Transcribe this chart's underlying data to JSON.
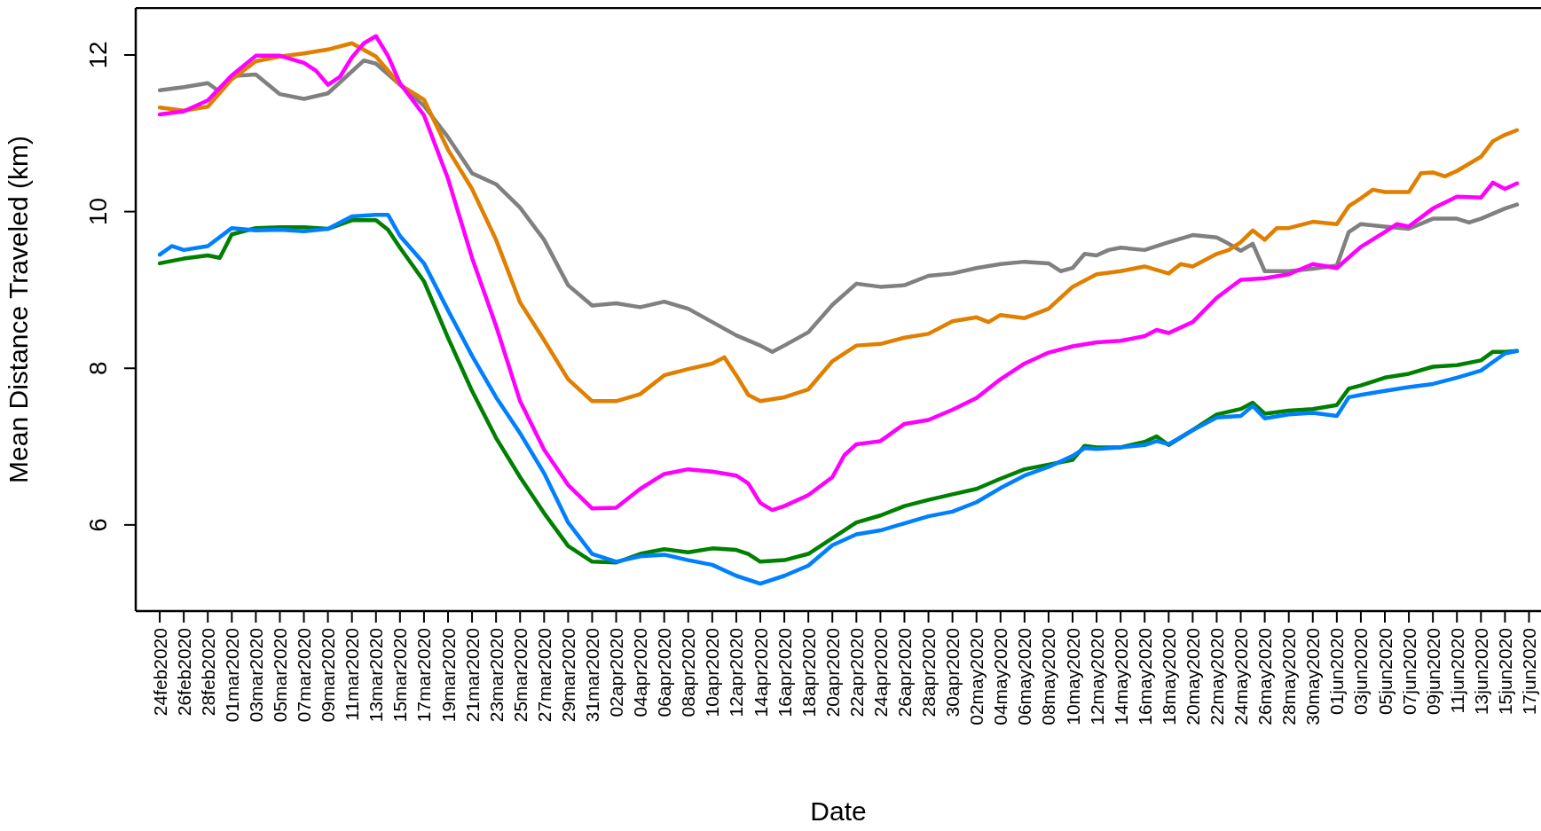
{
  "chart_data": {
    "type": "line",
    "xlabel": "Date",
    "ylabel": "Mean Distance Traveled (km)",
    "xlim": [
      "2020-02-22",
      "2020-06-18"
    ],
    "ylim": [
      4.9,
      12.6
    ],
    "yticks": [
      6,
      8,
      10,
      12
    ],
    "xticks": [
      {
        "value": "2020-02-24",
        "label": "24feb2020"
      },
      {
        "value": "2020-02-26",
        "label": "26feb2020"
      },
      {
        "value": "2020-02-28",
        "label": "28feb2020"
      },
      {
        "value": "2020-03-01",
        "label": "01mar2020"
      },
      {
        "value": "2020-03-03",
        "label": "03mar2020"
      },
      {
        "value": "2020-03-05",
        "label": "05mar2020"
      },
      {
        "value": "2020-03-07",
        "label": "07mar2020"
      },
      {
        "value": "2020-03-09",
        "label": "09mar2020"
      },
      {
        "value": "2020-03-11",
        "label": "11mar2020"
      },
      {
        "value": "2020-03-13",
        "label": "13mar2020"
      },
      {
        "value": "2020-03-15",
        "label": "15mar2020"
      },
      {
        "value": "2020-03-17",
        "label": "17mar2020"
      },
      {
        "value": "2020-03-19",
        "label": "19mar2020"
      },
      {
        "value": "2020-03-21",
        "label": "21mar2020"
      },
      {
        "value": "2020-03-23",
        "label": "23mar2020"
      },
      {
        "value": "2020-03-25",
        "label": "25mar2020"
      },
      {
        "value": "2020-03-27",
        "label": "27mar2020"
      },
      {
        "value": "2020-03-29",
        "label": "29mar2020"
      },
      {
        "value": "2020-03-31",
        "label": "31mar2020"
      },
      {
        "value": "2020-04-02",
        "label": "02apr2020"
      },
      {
        "value": "2020-04-04",
        "label": "04apr2020"
      },
      {
        "value": "2020-04-06",
        "label": "06apr2020"
      },
      {
        "value": "2020-04-08",
        "label": "08apr2020"
      },
      {
        "value": "2020-04-10",
        "label": "10apr2020"
      },
      {
        "value": "2020-04-12",
        "label": "12apr2020"
      },
      {
        "value": "2020-04-14",
        "label": "14apr2020"
      },
      {
        "value": "2020-04-16",
        "label": "16apr2020"
      },
      {
        "value": "2020-04-18",
        "label": "18apr2020"
      },
      {
        "value": "2020-04-20",
        "label": "20apr2020"
      },
      {
        "value": "2020-04-22",
        "label": "22apr2020"
      },
      {
        "value": "2020-04-24",
        "label": "24apr2020"
      },
      {
        "value": "2020-04-26",
        "label": "26apr2020"
      },
      {
        "value": "2020-04-28",
        "label": "28apr2020"
      },
      {
        "value": "2020-04-30",
        "label": "30apr2020"
      },
      {
        "value": "2020-05-02",
        "label": "02may2020"
      },
      {
        "value": "2020-05-04",
        "label": "04may2020"
      },
      {
        "value": "2020-05-06",
        "label": "06may2020"
      },
      {
        "value": "2020-05-08",
        "label": "08may2020"
      },
      {
        "value": "2020-05-10",
        "label": "10may2020"
      },
      {
        "value": "2020-05-12",
        "label": "12may2020"
      },
      {
        "value": "2020-05-14",
        "label": "14may2020"
      },
      {
        "value": "2020-05-16",
        "label": "16may2020"
      },
      {
        "value": "2020-05-18",
        "label": "18may2020"
      },
      {
        "value": "2020-05-20",
        "label": "20may2020"
      },
      {
        "value": "2020-05-22",
        "label": "22may2020"
      },
      {
        "value": "2020-05-24",
        "label": "24may2020"
      },
      {
        "value": "2020-05-26",
        "label": "26may2020"
      },
      {
        "value": "2020-05-28",
        "label": "28may2020"
      },
      {
        "value": "2020-05-30",
        "label": "30may2020"
      },
      {
        "value": "2020-06-01",
        "label": "01jun2020"
      },
      {
        "value": "2020-06-03",
        "label": "03jun2020"
      },
      {
        "value": "2020-06-05",
        "label": "05jun2020"
      },
      {
        "value": "2020-06-07",
        "label": "07jun2020"
      },
      {
        "value": "2020-06-09",
        "label": "09jun2020"
      },
      {
        "value": "2020-06-11",
        "label": "11jun2020"
      },
      {
        "value": "2020-06-13",
        "label": "13jun2020"
      },
      {
        "value": "2020-06-15",
        "label": "15jun2020"
      },
      {
        "value": "2020-06-17",
        "label": "17jun2020"
      }
    ],
    "series": [
      {
        "color": "#808080",
        "x": [
          "2020-02-24",
          "2020-02-26",
          "2020-02-28",
          "2020-02-29",
          "2020-03-01",
          "2020-03-03",
          "2020-03-05",
          "2020-03-07",
          "2020-03-09",
          "2020-03-11",
          "2020-03-12",
          "2020-03-13",
          "2020-03-15",
          "2020-03-17",
          "2020-03-19",
          "2020-03-21",
          "2020-03-23",
          "2020-03-25",
          "2020-03-27",
          "2020-03-29",
          "2020-03-31",
          "2020-04-02",
          "2020-04-04",
          "2020-04-06",
          "2020-04-08",
          "2020-04-10",
          "2020-04-12",
          "2020-04-14",
          "2020-04-15",
          "2020-04-16",
          "2020-04-18",
          "2020-04-20",
          "2020-04-22",
          "2020-04-24",
          "2020-04-26",
          "2020-04-28",
          "2020-04-30",
          "2020-05-02",
          "2020-05-04",
          "2020-05-06",
          "2020-05-08",
          "2020-05-09",
          "2020-05-10",
          "2020-05-11",
          "2020-05-12",
          "2020-05-13",
          "2020-05-14",
          "2020-05-16",
          "2020-05-18",
          "2020-05-20",
          "2020-05-22",
          "2020-05-23",
          "2020-05-24",
          "2020-05-25",
          "2020-05-26",
          "2020-05-28",
          "2020-05-30",
          "2020-06-01",
          "2020-06-02",
          "2020-06-03",
          "2020-06-05",
          "2020-06-07",
          "2020-06-09",
          "2020-06-11",
          "2020-06-12",
          "2020-06-13",
          "2020-06-15",
          "2020-06-16"
        ],
        "values": [
          11.55,
          11.59,
          11.64,
          11.53,
          11.73,
          11.75,
          11.5,
          11.44,
          11.51,
          11.79,
          11.93,
          11.89,
          11.62,
          11.35,
          10.95,
          10.49,
          10.35,
          10.05,
          9.64,
          9.06,
          8.8,
          8.83,
          8.78,
          8.85,
          8.76,
          8.59,
          8.42,
          8.29,
          8.21,
          8.29,
          8.46,
          8.81,
          9.08,
          9.04,
          9.06,
          9.18,
          9.21,
          9.28,
          9.33,
          9.36,
          9.34,
          9.24,
          9.28,
          9.46,
          9.44,
          9.51,
          9.54,
          9.51,
          9.61,
          9.7,
          9.67,
          9.59,
          9.5,
          9.59,
          9.24,
          9.24,
          9.27,
          9.31,
          9.74,
          9.84,
          9.81,
          9.78,
          9.91,
          9.91,
          9.86,
          9.91,
          10.04,
          10.09
        ]
      },
      {
        "color": "#e07f00",
        "x": [
          "2020-02-24",
          "2020-02-26",
          "2020-02-28",
          "2020-03-01",
          "2020-03-03",
          "2020-03-05",
          "2020-03-07",
          "2020-03-09",
          "2020-03-11",
          "2020-03-13",
          "2020-03-15",
          "2020-03-17",
          "2020-03-19",
          "2020-03-21",
          "2020-03-23",
          "2020-03-25",
          "2020-03-27",
          "2020-03-29",
          "2020-03-31",
          "2020-04-02",
          "2020-04-04",
          "2020-04-06",
          "2020-04-08",
          "2020-04-10",
          "2020-04-11",
          "2020-04-12",
          "2020-04-13",
          "2020-04-14",
          "2020-04-16",
          "2020-04-18",
          "2020-04-20",
          "2020-04-22",
          "2020-04-24",
          "2020-04-26",
          "2020-04-28",
          "2020-04-30",
          "2020-05-02",
          "2020-05-03",
          "2020-05-04",
          "2020-05-06",
          "2020-05-08",
          "2020-05-10",
          "2020-05-12",
          "2020-05-14",
          "2020-05-16",
          "2020-05-18",
          "2020-05-19",
          "2020-05-20",
          "2020-05-22",
          "2020-05-23",
          "2020-05-24",
          "2020-05-25",
          "2020-05-26",
          "2020-05-27",
          "2020-05-28",
          "2020-05-30",
          "2020-06-01",
          "2020-06-02",
          "2020-06-03",
          "2020-06-04",
          "2020-06-05",
          "2020-06-07",
          "2020-06-08",
          "2020-06-09",
          "2020-06-10",
          "2020-06-11",
          "2020-06-13",
          "2020-06-14",
          "2020-06-15",
          "2020-06-16"
        ],
        "values": [
          11.33,
          11.29,
          11.34,
          11.69,
          11.92,
          11.98,
          12.02,
          12.07,
          12.15,
          11.98,
          11.62,
          11.43,
          10.79,
          10.29,
          9.64,
          8.84,
          8.36,
          7.86,
          7.58,
          7.58,
          7.67,
          7.91,
          7.99,
          8.06,
          8.14,
          7.91,
          7.66,
          7.58,
          7.63,
          7.73,
          8.09,
          8.29,
          8.31,
          8.39,
          8.44,
          8.6,
          8.65,
          8.59,
          8.68,
          8.64,
          8.76,
          9.04,
          9.2,
          9.24,
          9.3,
          9.21,
          9.33,
          9.3,
          9.46,
          9.51,
          9.61,
          9.76,
          9.64,
          9.79,
          9.79,
          9.87,
          9.84,
          10.07,
          10.17,
          10.28,
          10.25,
          10.25,
          10.49,
          10.5,
          10.45,
          10.52,
          10.7,
          10.9,
          10.98,
          11.04
        ]
      },
      {
        "color": "#ff00ff",
        "x": [
          "2020-02-24",
          "2020-02-26",
          "2020-02-28",
          "2020-03-01",
          "2020-03-03",
          "2020-03-05",
          "2020-03-07",
          "2020-03-08",
          "2020-03-09",
          "2020-03-10",
          "2020-03-11",
          "2020-03-12",
          "2020-03-13",
          "2020-03-14",
          "2020-03-15",
          "2020-03-17",
          "2020-03-19",
          "2020-03-21",
          "2020-03-23",
          "2020-03-25",
          "2020-03-27",
          "2020-03-29",
          "2020-03-31",
          "2020-04-02",
          "2020-04-04",
          "2020-04-06",
          "2020-04-08",
          "2020-04-10",
          "2020-04-12",
          "2020-04-13",
          "2020-04-14",
          "2020-04-15",
          "2020-04-16",
          "2020-04-18",
          "2020-04-20",
          "2020-04-21",
          "2020-04-22",
          "2020-04-24",
          "2020-04-26",
          "2020-04-28",
          "2020-04-30",
          "2020-05-02",
          "2020-05-04",
          "2020-05-06",
          "2020-05-08",
          "2020-05-10",
          "2020-05-12",
          "2020-05-14",
          "2020-05-16",
          "2020-05-17",
          "2020-05-18",
          "2020-05-20",
          "2020-05-22",
          "2020-05-24",
          "2020-05-26",
          "2020-05-28",
          "2020-05-30",
          "2020-06-01",
          "2020-06-03",
          "2020-06-05",
          "2020-06-06",
          "2020-06-07",
          "2020-06-09",
          "2020-06-11",
          "2020-06-13",
          "2020-06-14",
          "2020-06-15",
          "2020-06-16"
        ],
        "values": [
          11.24,
          11.28,
          11.42,
          11.74,
          11.99,
          11.99,
          11.9,
          11.8,
          11.62,
          11.72,
          11.97,
          12.15,
          12.24,
          11.99,
          11.64,
          11.23,
          10.42,
          9.41,
          8.54,
          7.58,
          6.96,
          6.51,
          6.21,
          6.22,
          6.46,
          6.65,
          6.71,
          6.68,
          6.63,
          6.53,
          6.28,
          6.19,
          6.24,
          6.38,
          6.61,
          6.89,
          7.03,
          7.07,
          7.29,
          7.34,
          7.47,
          7.62,
          7.86,
          8.06,
          8.2,
          8.28,
          8.33,
          8.35,
          8.41,
          8.49,
          8.45,
          8.59,
          8.9,
          9.13,
          9.15,
          9.2,
          9.33,
          9.28,
          9.55,
          9.74,
          9.84,
          9.81,
          10.04,
          10.19,
          10.18,
          10.37,
          10.29,
          10.36
        ]
      },
      {
        "color": "#008000",
        "x": [
          "2020-02-24",
          "2020-02-26",
          "2020-02-28",
          "2020-02-29",
          "2020-03-01",
          "2020-03-03",
          "2020-03-05",
          "2020-03-07",
          "2020-03-09",
          "2020-03-11",
          "2020-03-13",
          "2020-03-14",
          "2020-03-15",
          "2020-03-17",
          "2020-03-19",
          "2020-03-21",
          "2020-03-23",
          "2020-03-25",
          "2020-03-27",
          "2020-03-29",
          "2020-03-31",
          "2020-04-02",
          "2020-04-04",
          "2020-04-06",
          "2020-04-08",
          "2020-04-10",
          "2020-04-12",
          "2020-04-13",
          "2020-04-14",
          "2020-04-16",
          "2020-04-18",
          "2020-04-20",
          "2020-04-22",
          "2020-04-24",
          "2020-04-26",
          "2020-04-28",
          "2020-04-30",
          "2020-05-02",
          "2020-05-04",
          "2020-05-06",
          "2020-05-08",
          "2020-05-10",
          "2020-05-11",
          "2020-05-12",
          "2020-05-14",
          "2020-05-16",
          "2020-05-17",
          "2020-05-18",
          "2020-05-20",
          "2020-05-22",
          "2020-05-24",
          "2020-05-25",
          "2020-05-26",
          "2020-05-28",
          "2020-05-30",
          "2020-06-01",
          "2020-06-02",
          "2020-06-03",
          "2020-06-05",
          "2020-06-07",
          "2020-06-09",
          "2020-06-11",
          "2020-06-13",
          "2020-06-14",
          "2020-06-15",
          "2020-06-16"
        ],
        "values": [
          9.34,
          9.4,
          9.44,
          9.41,
          9.71,
          9.79,
          9.8,
          9.8,
          9.78,
          9.89,
          9.89,
          9.77,
          9.54,
          9.11,
          8.39,
          7.71,
          7.11,
          6.61,
          6.15,
          5.73,
          5.53,
          5.52,
          5.63,
          5.69,
          5.65,
          5.7,
          5.68,
          5.63,
          5.53,
          5.55,
          5.63,
          5.83,
          6.03,
          6.12,
          6.24,
          6.32,
          6.39,
          6.46,
          6.59,
          6.71,
          6.77,
          6.83,
          7.01,
          6.99,
          6.99,
          7.06,
          7.13,
          7.02,
          7.21,
          7.41,
          7.48,
          7.56,
          7.42,
          7.46,
          7.48,
          7.53,
          7.74,
          7.78,
          7.88,
          7.93,
          8.02,
          8.04,
          8.1,
          8.21,
          8.21,
          8.22
        ]
      },
      {
        "color": "#0080ff",
        "x": [
          "2020-02-24",
          "2020-02-25",
          "2020-02-26",
          "2020-02-28",
          "2020-03-01",
          "2020-03-03",
          "2020-03-05",
          "2020-03-07",
          "2020-03-09",
          "2020-03-11",
          "2020-03-13",
          "2020-03-14",
          "2020-03-15",
          "2020-03-17",
          "2020-03-19",
          "2020-03-21",
          "2020-03-23",
          "2020-03-25",
          "2020-03-27",
          "2020-03-29",
          "2020-03-31",
          "2020-04-02",
          "2020-04-04",
          "2020-04-06",
          "2020-04-08",
          "2020-04-10",
          "2020-04-12",
          "2020-04-14",
          "2020-04-16",
          "2020-04-18",
          "2020-04-20",
          "2020-04-22",
          "2020-04-24",
          "2020-04-26",
          "2020-04-28",
          "2020-04-30",
          "2020-05-02",
          "2020-05-04",
          "2020-05-06",
          "2020-05-08",
          "2020-05-10",
          "2020-05-11",
          "2020-05-12",
          "2020-05-14",
          "2020-05-16",
          "2020-05-17",
          "2020-05-18",
          "2020-05-20",
          "2020-05-22",
          "2020-05-24",
          "2020-05-25",
          "2020-05-26",
          "2020-05-28",
          "2020-05-30",
          "2020-06-01",
          "2020-06-02",
          "2020-06-03",
          "2020-06-05",
          "2020-06-07",
          "2020-06-09",
          "2020-06-11",
          "2020-06-13",
          "2020-06-15",
          "2020-06-16"
        ],
        "values": [
          9.45,
          9.56,
          9.51,
          9.56,
          9.79,
          9.76,
          9.77,
          9.75,
          9.78,
          9.94,
          9.96,
          9.96,
          9.69,
          9.34,
          8.74,
          8.16,
          7.63,
          7.17,
          6.66,
          6.03,
          5.63,
          5.53,
          5.6,
          5.62,
          5.55,
          5.49,
          5.35,
          5.25,
          5.35,
          5.48,
          5.74,
          5.88,
          5.93,
          6.02,
          6.11,
          6.17,
          6.29,
          6.47,
          6.63,
          6.74,
          6.88,
          6.98,
          6.97,
          6.99,
          7.02,
          7.07,
          7.03,
          7.21,
          7.37,
          7.39,
          7.52,
          7.36,
          7.41,
          7.43,
          7.39,
          7.63,
          7.66,
          7.71,
          7.76,
          7.8,
          7.88,
          7.97,
          8.19,
          8.22
        ]
      }
    ]
  }
}
